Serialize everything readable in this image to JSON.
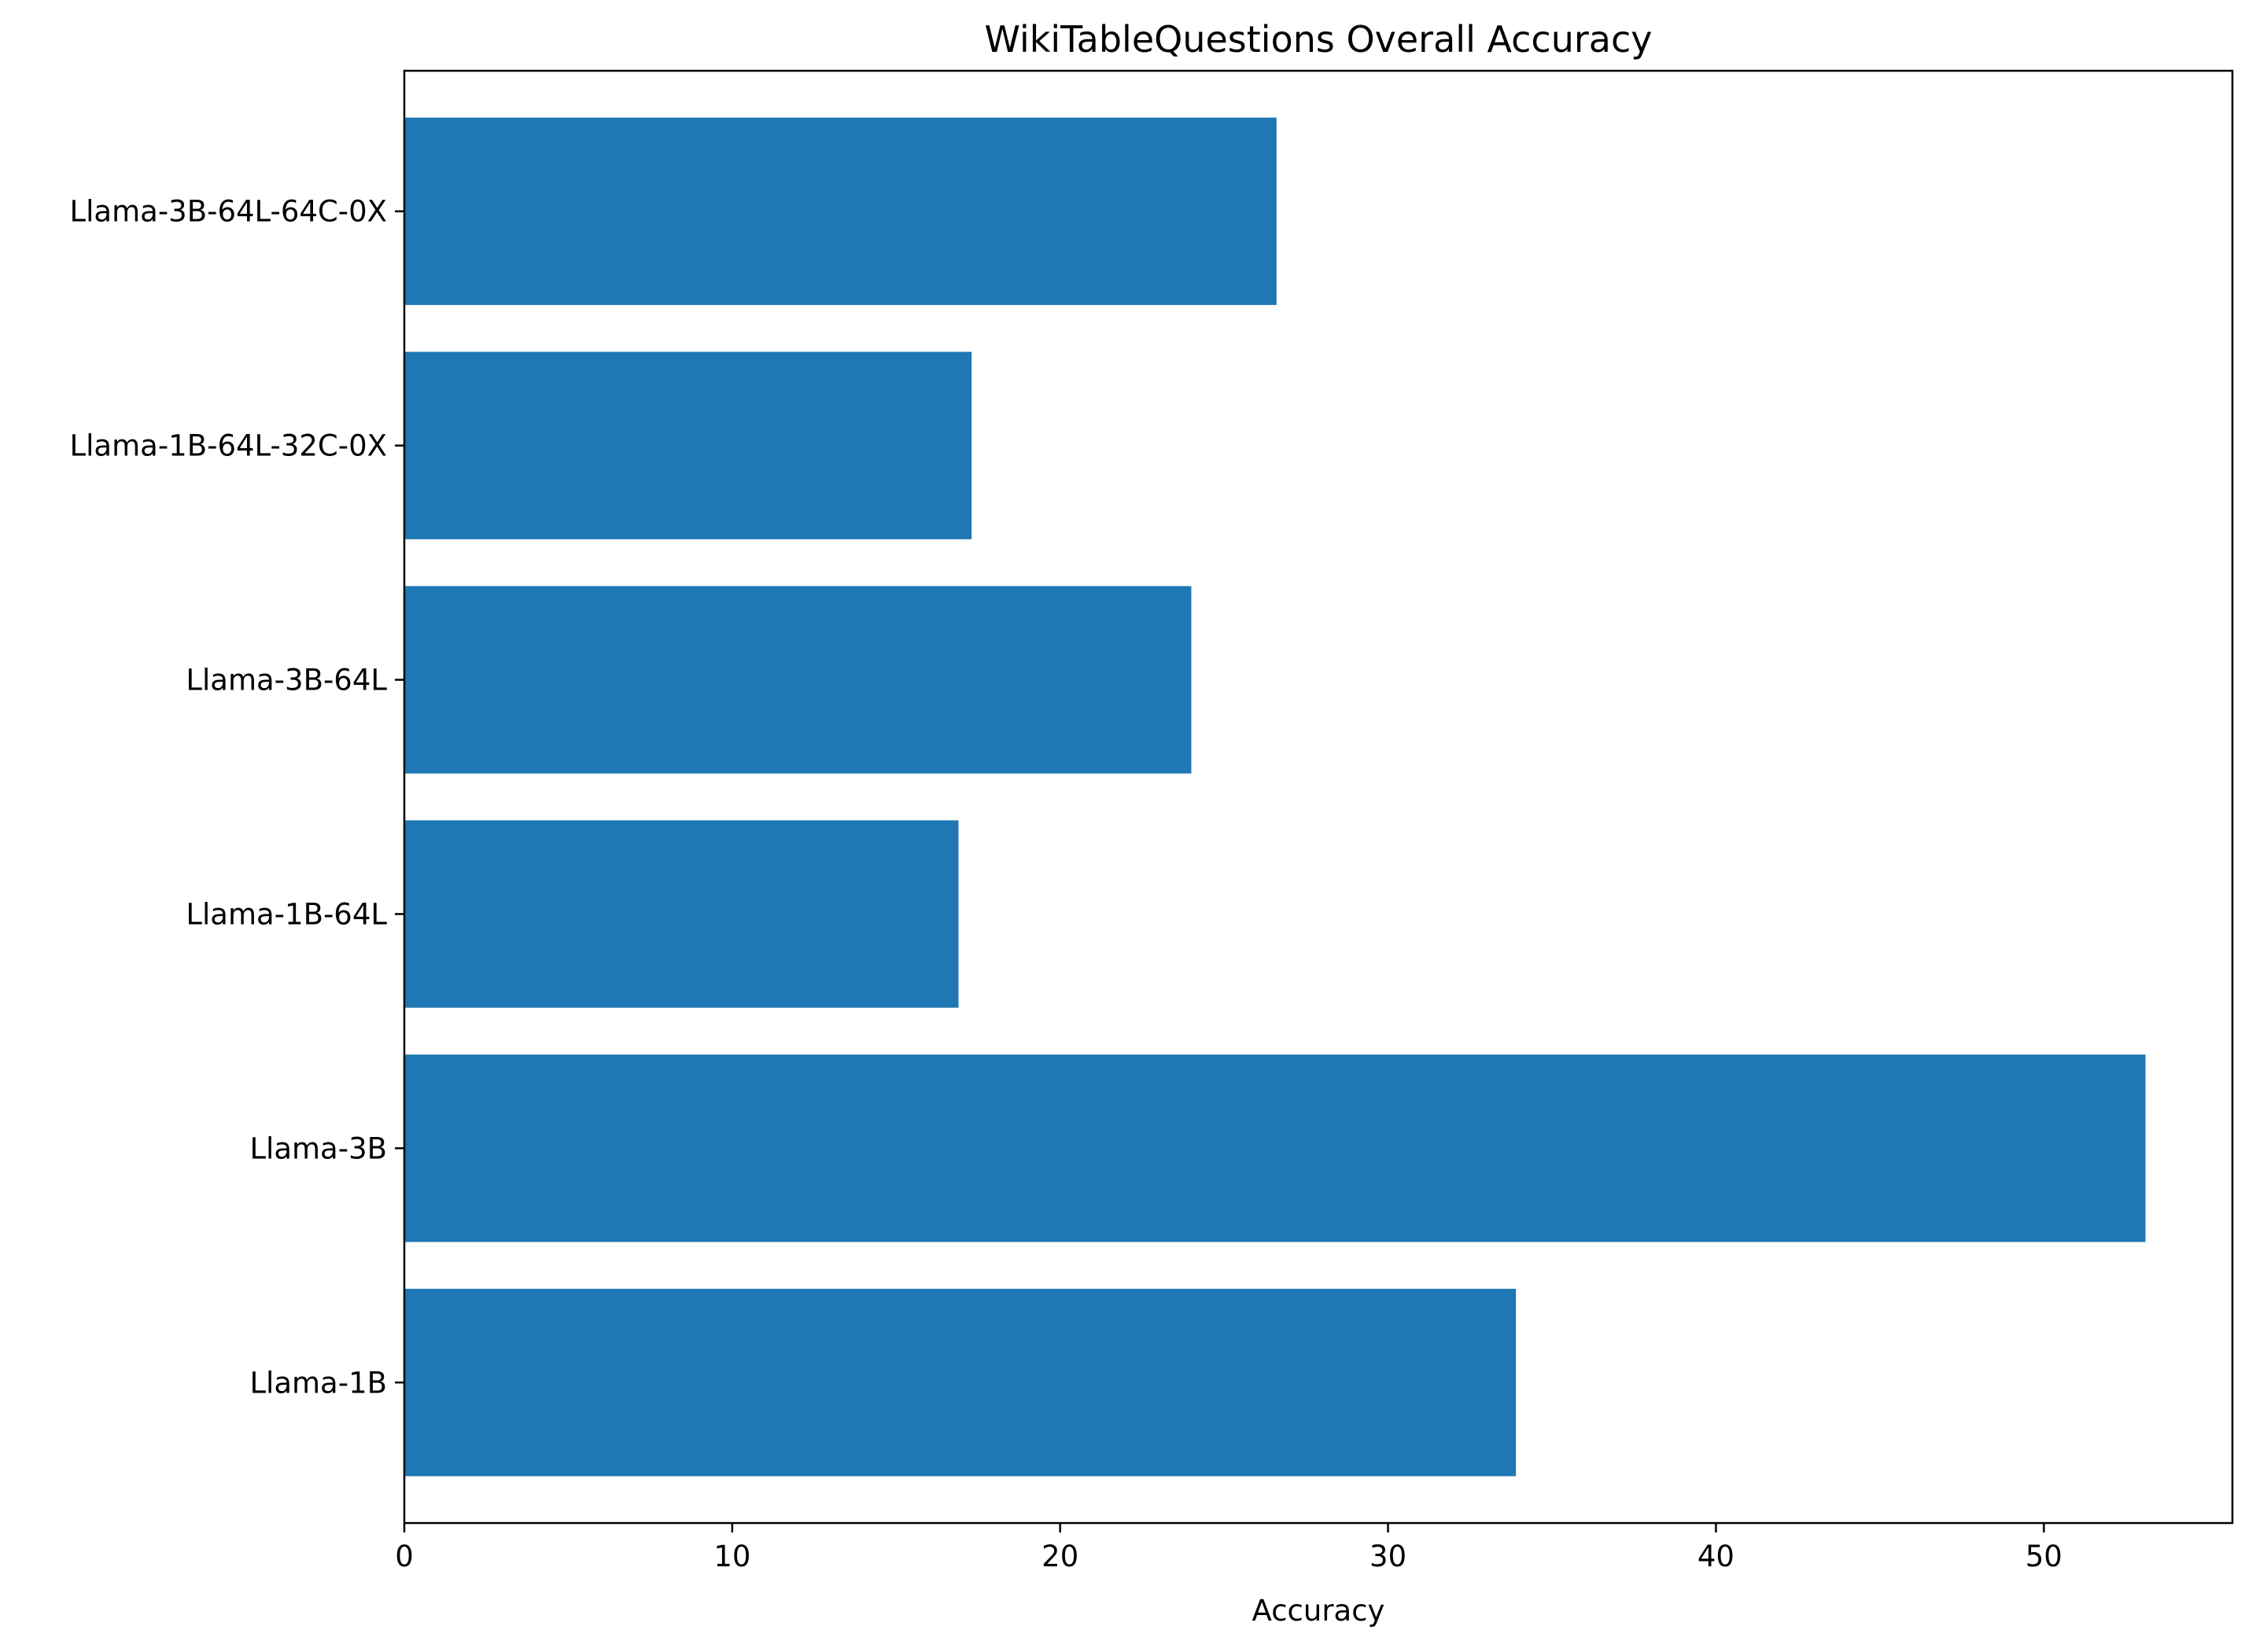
{
  "chart_data": {
    "type": "bar",
    "orientation": "horizontal",
    "title": "WikiTableQuestions Overall Accuracy",
    "xlabel": "Accuracy",
    "ylabel": "",
    "categories": [
      "Llama-1B",
      "Llama-3B",
      "Llama-1B-64L",
      "Llama-3B-64L",
      "Llama-1B-64L-32C-0X",
      "Llama-3B-64L-64C-0X"
    ],
    "values": [
      33.9,
      53.1,
      16.9,
      24.0,
      17.3,
      26.6
    ],
    "xlim": [
      0,
      55.75
    ],
    "xticks": [
      0,
      10,
      20,
      30,
      40,
      50
    ],
    "grid": false,
    "legend": "none",
    "colors": {
      "bar": "#1f77b4",
      "axes": "#000000",
      "background": "#ffffff"
    }
  }
}
